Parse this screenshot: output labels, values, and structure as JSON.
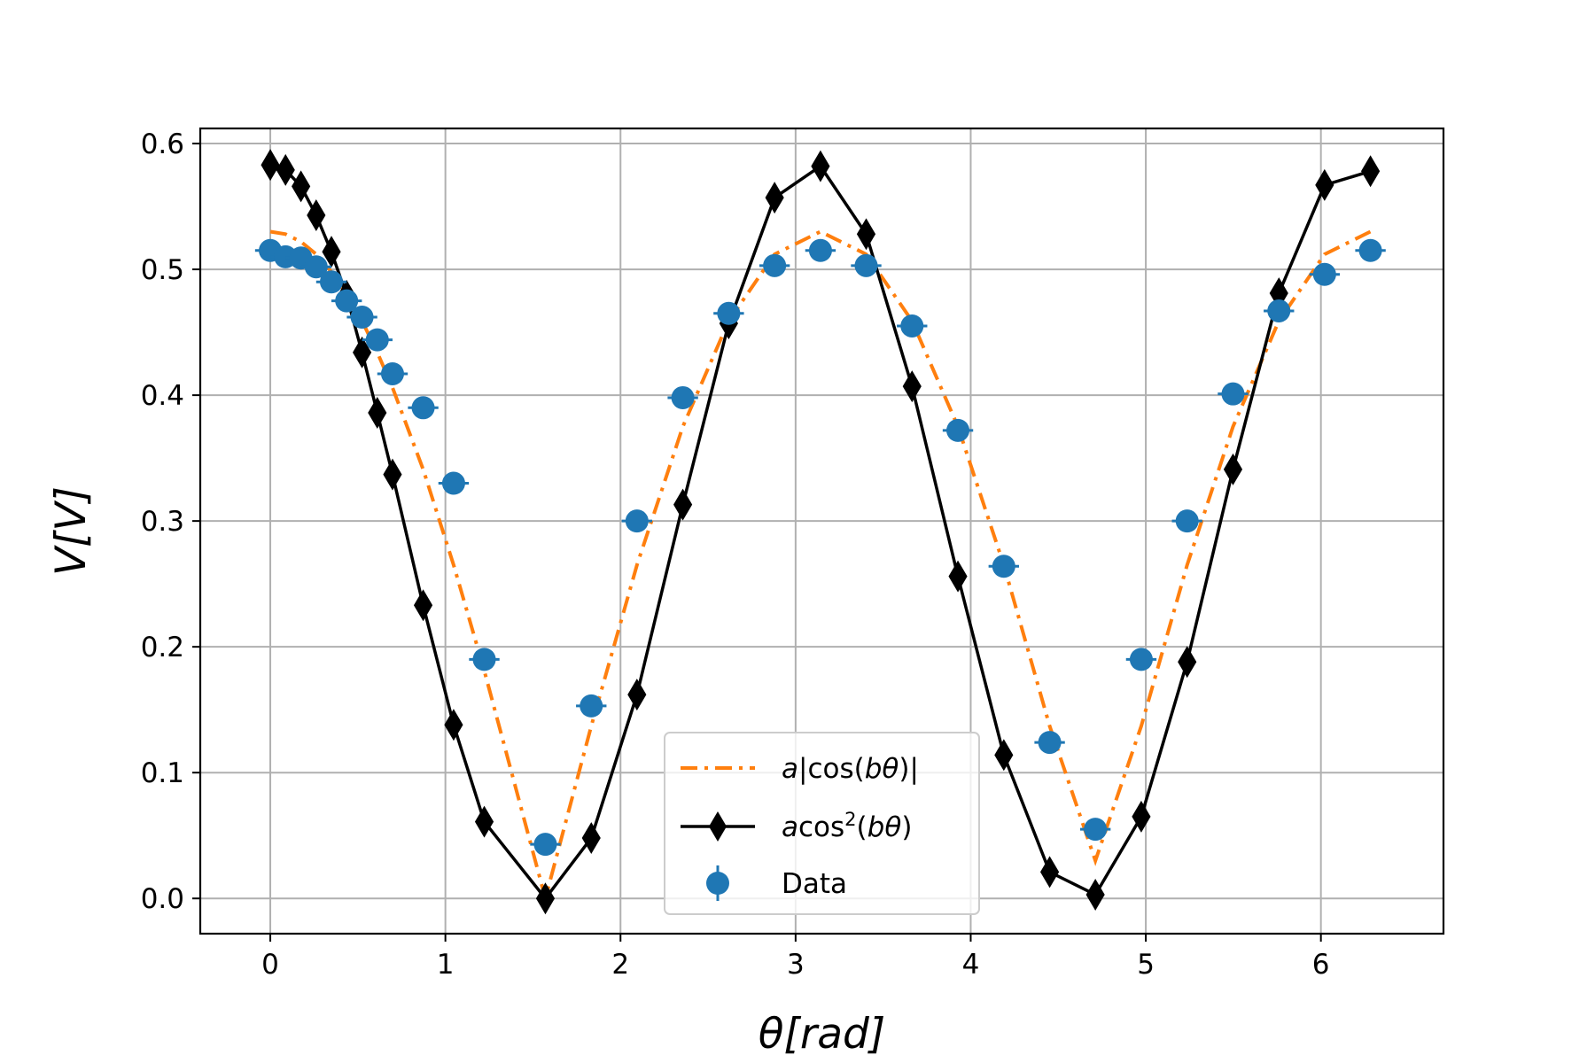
{
  "chart_data": {
    "type": "line",
    "xlabel": "θ[rad]",
    "ylabel": "V[V]",
    "xlim": [
      -0.4,
      6.7
    ],
    "ylim": [
      -0.028,
      0.612
    ],
    "xticks": [
      0,
      1,
      2,
      3,
      4,
      5,
      6
    ],
    "yticks": [
      0.0,
      0.1,
      0.2,
      0.3,
      0.4,
      0.5,
      0.6
    ],
    "xtick_labels": [
      "0",
      "1",
      "2",
      "3",
      "4",
      "5",
      "6"
    ],
    "ytick_labels": [
      "0.0",
      "0.1",
      "0.2",
      "0.3",
      "0.4",
      "0.5",
      "0.6"
    ],
    "grid": true,
    "legend_position": "bottom-center",
    "x": [
      0,
      0.087,
      0.175,
      0.262,
      0.349,
      0.436,
      0.524,
      0.611,
      0.698,
      0.873,
      1.047,
      1.222,
      1.571,
      1.833,
      2.094,
      2.356,
      2.618,
      2.88,
      3.142,
      3.403,
      3.665,
      3.927,
      4.189,
      4.451,
      4.712,
      4.974,
      5.236,
      5.498,
      5.76,
      6.021,
      6.283
    ],
    "series": [
      {
        "name": "a|cos(bθ)|",
        "legend_prefix": "a",
        "legend_rest": "|cos(",
        "legend_var": "bθ",
        "legend_suffix": ")|",
        "style": "dashdot",
        "color": "#ff7f0e",
        "values": [
          0.53,
          0.528,
          0.522,
          0.512,
          0.498,
          0.48,
          0.459,
          0.434,
          0.406,
          0.341,
          0.265,
          0.181,
          0.0,
          0.137,
          0.265,
          0.375,
          0.459,
          0.512,
          0.53,
          0.512,
          0.459,
          0.375,
          0.265,
          0.137,
          0.03,
          0.137,
          0.265,
          0.375,
          0.459,
          0.512,
          0.53
        ]
      },
      {
        "name": "acos²(bθ)",
        "legend_prefix": "a",
        "legend_rest": "cos",
        "legend_sup": "2",
        "legend_mid": "(",
        "legend_var": "bθ",
        "legend_suffix": ")",
        "style": "solid",
        "marker": "thin-diamond",
        "color": "#000000",
        "values": [
          0.583,
          0.579,
          0.566,
          0.543,
          0.514,
          0.479,
          0.434,
          0.386,
          0.337,
          0.233,
          0.138,
          0.061,
          0.0,
          0.048,
          0.162,
          0.313,
          0.457,
          0.557,
          0.582,
          0.528,
          0.407,
          0.256,
          0.114,
          0.021,
          0.003,
          0.065,
          0.188,
          0.341,
          0.481,
          0.567,
          0.578
        ]
      },
      {
        "name": "Data",
        "style": "errorbar",
        "marker": "circle",
        "color": "#1f77b4",
        "values": [
          0.515,
          0.51,
          0.509,
          0.502,
          0.49,
          0.475,
          0.462,
          0.444,
          0.417,
          0.39,
          0.33,
          0.19,
          0.043,
          0.153,
          0.3,
          0.398,
          0.465,
          0.503,
          0.515,
          0.503,
          0.455,
          0.372,
          0.264,
          0.124,
          0.055,
          0.19,
          0.3,
          0.401,
          0.467,
          0.496,
          0.515
        ],
        "xerr": 0.087,
        "yerr": 0.003
      }
    ]
  }
}
